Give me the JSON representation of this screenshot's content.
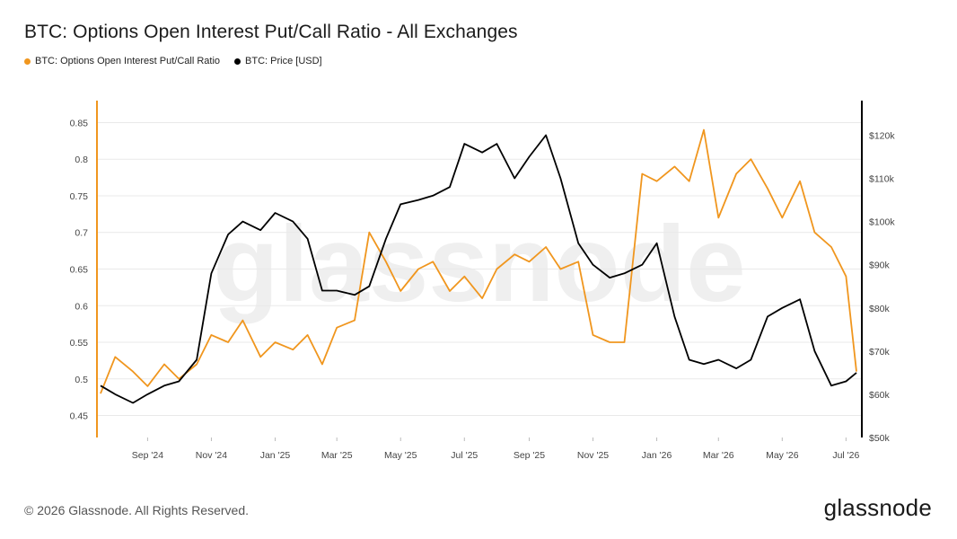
{
  "title": "BTC: Options Open Interest Put/Call Ratio - All Exchanges",
  "footer": "© 2026 Glassnode. All Rights Reserved.",
  "brand": "glassnode",
  "watermark": "glassnode",
  "colors": {
    "ratio": "#F0961E",
    "price": "#000000",
    "grid": "#e9e9e9"
  },
  "chart_data": {
    "type": "line",
    "legend_position": "top-left",
    "grid": true,
    "x": [
      "2024-08-01",
      "2024-08-15",
      "2024-09-01",
      "2024-09-15",
      "2024-10-01",
      "2024-10-15",
      "2024-11-01",
      "2024-11-15",
      "2024-12-01",
      "2024-12-15",
      "2025-01-01",
      "2025-01-15",
      "2025-02-01",
      "2025-02-15",
      "2025-03-01",
      "2025-03-15",
      "2025-04-01",
      "2025-04-15",
      "2025-05-01",
      "2025-05-15",
      "2025-06-01",
      "2025-06-15",
      "2025-07-01",
      "2025-07-15",
      "2025-08-01",
      "2025-08-15",
      "2025-09-01",
      "2025-09-15",
      "2025-10-01",
      "2025-10-15",
      "2025-11-01",
      "2025-11-15",
      "2025-12-01",
      "2025-12-15",
      "2026-01-01",
      "2026-01-15",
      "2026-02-01",
      "2026-02-15",
      "2026-03-01",
      "2026-03-15",
      "2026-04-01",
      "2026-04-15",
      "2026-05-01",
      "2026-05-15",
      "2026-06-01",
      "2026-06-15",
      "2026-07-01",
      "2026-07-15",
      "2026-07-25"
    ],
    "series": [
      {
        "name": "BTC: Options Open Interest Put/Call Ratio",
        "axis": "left",
        "values": [
          0.48,
          0.53,
          0.51,
          0.49,
          0.52,
          0.5,
          0.52,
          0.56,
          0.55,
          0.58,
          0.53,
          0.55,
          0.54,
          0.56,
          0.52,
          0.57,
          0.58,
          0.7,
          0.66,
          0.62,
          0.65,
          0.66,
          0.62,
          0.64,
          0.61,
          0.65,
          0.67,
          0.66,
          0.68,
          0.65,
          0.66,
          0.56,
          0.55,
          0.55,
          0.78,
          0.77,
          0.79,
          0.77,
          0.84,
          0.72,
          0.78,
          0.8,
          0.76,
          0.72,
          0.77,
          0.7,
          0.68,
          0.64,
          0.51
        ]
      },
      {
        "name": "BTC: Price [USD]",
        "axis": "right",
        "values": [
          62000,
          60000,
          58000,
          60000,
          62000,
          63000,
          68000,
          88000,
          97000,
          100000,
          98000,
          102000,
          100000,
          96000,
          84000,
          84000,
          83000,
          85000,
          96000,
          104000,
          105000,
          106000,
          108000,
          118000,
          116000,
          118000,
          110000,
          115000,
          120000,
          110000,
          95000,
          90000,
          87000,
          88000,
          90000,
          95000,
          78000,
          68000,
          67000,
          68000,
          66000,
          68000,
          78000,
          80000,
          82000,
          70000,
          62000,
          63000,
          65000
        ]
      }
    ],
    "y_left": {
      "ticks": [
        "0.45",
        "0.5",
        "0.55",
        "0.6",
        "0.65",
        "0.7",
        "0.75",
        "0.8",
        "0.85"
      ],
      "range": [
        0.42,
        0.88
      ]
    },
    "y_right": {
      "ticks": [
        "$50k",
        "$60k",
        "$70k",
        "$80k",
        "$90k",
        "$100k",
        "$110k",
        "$120k"
      ],
      "range": [
        50000,
        128000
      ]
    },
    "x_ticks": [
      {
        "label": "Sep '24",
        "date": "2024-09-15"
      },
      {
        "label": "Nov '24",
        "date": "2024-11-15"
      },
      {
        "label": "Jan '25",
        "date": "2025-01-15"
      },
      {
        "label": "Mar '25",
        "date": "2025-03-15"
      },
      {
        "label": "May '25",
        "date": "2025-05-15"
      },
      {
        "label": "Jul '25",
        "date": "2025-07-15"
      },
      {
        "label": "Sep '25",
        "date": "2025-09-15"
      },
      {
        "label": "Nov '25",
        "date": "2025-11-15"
      },
      {
        "label": "Jan '26",
        "date": "2026-01-15"
      },
      {
        "label": "Mar '26",
        "date": "2026-03-15"
      },
      {
        "label": "May '26",
        "date": "2026-05-15"
      },
      {
        "label": "Jul '26",
        "date": "2026-07-15"
      }
    ]
  }
}
